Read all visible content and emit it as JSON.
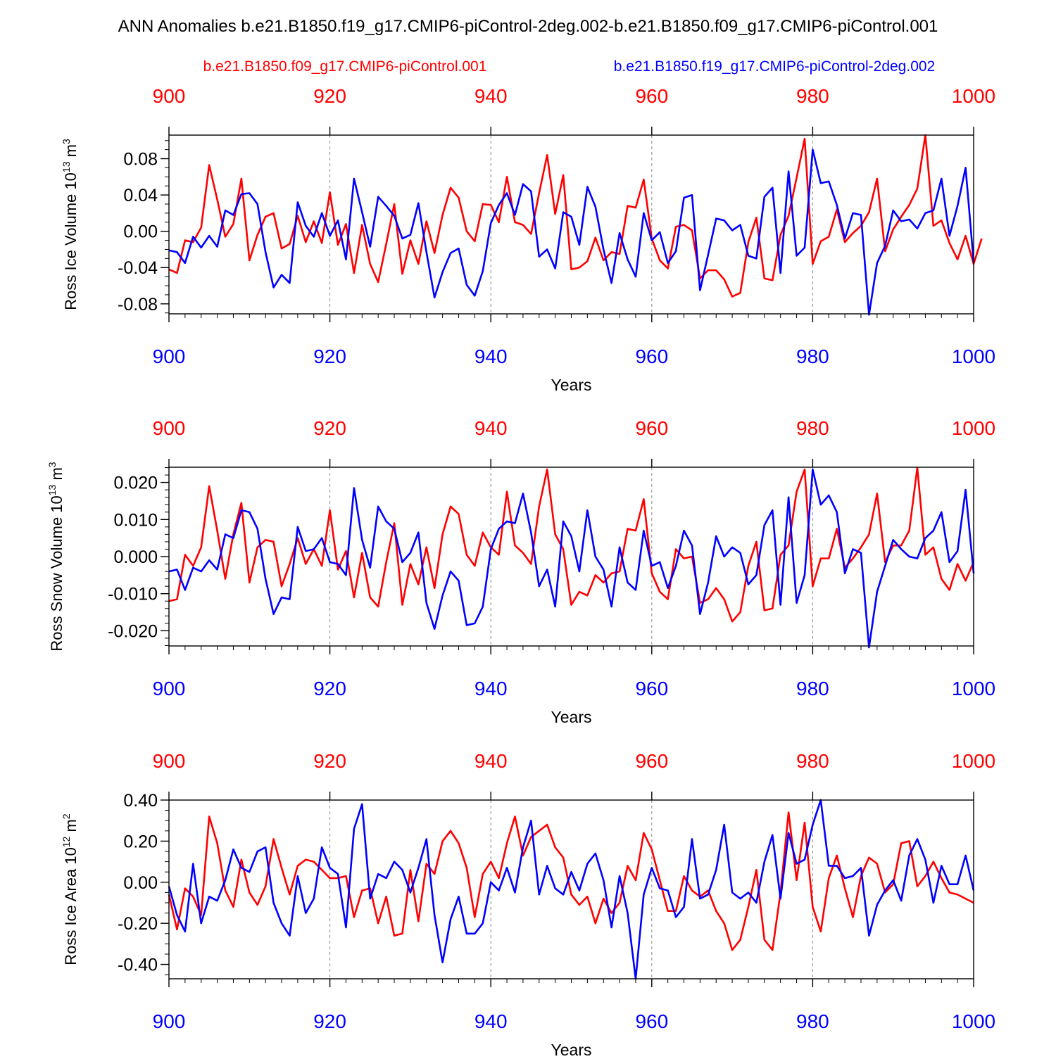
{
  "title": "ANN Anomalies b.e21.B1850.f19_g17.CMIP6-piControl-2deg.002-b.e21.B1850.f09_g17.CMIP6-piControl.001",
  "legend": {
    "red": "b.e21.B1850.f09_g17.CMIP6-piControl.001",
    "blue": "b.e21.B1850.f19_g17.CMIP6-piControl-2deg.002"
  },
  "colors": {
    "red": "#ff0000",
    "blue": "#0000ff",
    "axis": "#000000",
    "grid": "#888888"
  },
  "chart_data": [
    {
      "type": "line",
      "title": "",
      "xlabel": "Years",
      "ylabel_text": "Ross Ice Volume 10",
      "ylabel_sup": "13",
      "ylabel_unit": " m",
      "ylabel_unit_sup": "3",
      "xlim": [
        900,
        1000
      ],
      "ylim": [
        -0.091,
        0.106
      ],
      "xticks": [
        "900",
        "920",
        "940",
        "960",
        "980",
        "1000"
      ],
      "yticks": [
        {
          "v": 0.08,
          "label": "0.08"
        },
        {
          "v": 0.04,
          "label": "0.04"
        },
        {
          "v": 0.0,
          "label": "0.00"
        },
        {
          "v": -0.04,
          "label": "-0.04"
        },
        {
          "v": -0.08,
          "label": "-0.08"
        }
      ],
      "yminor": [
        0.1,
        0.09,
        0.07,
        0.06,
        0.05,
        0.03,
        0.02,
        0.01,
        -0.01,
        -0.02,
        -0.03,
        -0.05,
        -0.06,
        -0.07,
        -0.09
      ],
      "x_start": 900,
      "series": [
        {
          "name": "b.e21.B1850.f09_g17.CMIP6-piControl.001",
          "color": "red",
          "values": [
            -0.042,
            -0.046,
            -0.01,
            -0.012,
            0.004,
            0.073,
            0.035,
            -0.006,
            0.008,
            0.058,
            -0.032,
            -0.004,
            0.016,
            0.02,
            -0.019,
            -0.014,
            0.017,
            -0.012,
            0.011,
            -0.013,
            0.043,
            -0.015,
            0.008,
            -0.046,
            0.007,
            -0.036,
            -0.056,
            -0.014,
            0.03,
            -0.047,
            -0.01,
            -0.036,
            0.011,
            -0.024,
            0.018,
            0.048,
            0.037,
            0.0,
            -0.011,
            0.03,
            0.029,
            0.01,
            0.06,
            0.01,
            0.007,
            -0.003,
            0.042,
            0.084,
            0.019,
            0.062,
            -0.042,
            -0.04,
            -0.033,
            -0.007,
            -0.032,
            -0.023,
            -0.025,
            0.028,
            0.026,
            0.057,
            -0.008,
            -0.032,
            -0.041,
            0.005,
            0.007,
            0.001,
            -0.052,
            -0.043,
            -0.043,
            -0.053,
            -0.072,
            -0.068,
            -0.012,
            0.015,
            -0.052,
            -0.054,
            -0.004,
            0.017,
            0.059,
            0.102,
            -0.036,
            -0.011,
            -0.006,
            0.024,
            -0.012,
            -0.002,
            0.006,
            0.021,
            0.058,
            -0.022,
            0.002,
            0.016,
            0.029,
            0.047,
            0.106,
            0.006,
            0.012,
            -0.013,
            -0.031,
            -0.005,
            -0.036,
            -0.008
          ]
        },
        {
          "name": "b.e21.B1850.f19_g17.CMIP6-piControl-2deg.002",
          "color": "blue",
          "values": [
            -0.021,
            -0.023,
            -0.035,
            -0.006,
            -0.018,
            -0.005,
            -0.017,
            0.023,
            0.018,
            0.041,
            0.042,
            0.03,
            -0.023,
            -0.062,
            -0.048,
            -0.057,
            0.032,
            0.006,
            -0.006,
            0.02,
            -0.005,
            0.012,
            -0.031,
            0.058,
            0.021,
            -0.017,
            0.038,
            0.028,
            0.017,
            -0.008,
            -0.004,
            0.031,
            -0.023,
            -0.073,
            -0.045,
            -0.024,
            -0.019,
            -0.059,
            -0.071,
            -0.044,
            0.009,
            0.029,
            0.042,
            0.018,
            0.052,
            0.044,
            -0.028,
            -0.02,
            -0.041,
            0.021,
            0.016,
            -0.015,
            0.049,
            0.027,
            -0.02,
            -0.057,
            -0.002,
            -0.031,
            -0.05,
            0.02,
            -0.01,
            -0.001,
            -0.035,
            -0.022,
            0.037,
            0.04,
            -0.065,
            -0.026,
            0.014,
            0.012,
            0.001,
            0.007,
            -0.027,
            -0.03,
            0.038,
            0.048,
            -0.046,
            0.066,
            -0.027,
            -0.018,
            0.09,
            0.053,
            0.055,
            0.029,
            -0.008,
            0.02,
            0.018,
            -0.092,
            -0.035,
            -0.016,
            0.023,
            0.011,
            0.013,
            0.003,
            0.02,
            0.023,
            0.058,
            -0.005,
            0.028,
            0.07,
            -0.034
          ]
        }
      ]
    },
    {
      "type": "line",
      "title": "",
      "xlabel": "Years",
      "ylabel_text": "Ross Snow Volume 10",
      "ylabel_sup": "13",
      "ylabel_unit": " m",
      "ylabel_unit_sup": "3",
      "xlim": [
        900,
        1000
      ],
      "ylim": [
        -0.0241,
        0.0241
      ],
      "xticks": [
        "900",
        "920",
        "940",
        "960",
        "980",
        "1000"
      ],
      "yticks": [
        {
          "v": 0.02,
          "label": "0.020"
        },
        {
          "v": 0.01,
          "label": "0.010"
        },
        {
          "v": 0.0,
          "label": "0.000"
        },
        {
          "v": -0.01,
          "label": "-0.010"
        },
        {
          "v": -0.02,
          "label": "-0.020"
        }
      ],
      "yminor": [
        0.024,
        0.022,
        0.018,
        0.016,
        0.014,
        0.012,
        0.008,
        0.006,
        0.004,
        0.002,
        -0.002,
        -0.004,
        -0.006,
        -0.008,
        -0.012,
        -0.014,
        -0.016,
        -0.018,
        -0.022,
        -0.024
      ],
      "x_start": 900,
      "series": [
        {
          "name": "b.e21.B1850.f09_g17.CMIP6-piControl.001",
          "color": "red",
          "values": [
            -0.012,
            -0.0115,
            0.0005,
            -0.0025,
            0.0025,
            0.019,
            0.007,
            -0.006,
            0.006,
            0.0145,
            -0.007,
            0.0025,
            0.0045,
            0.004,
            -0.008,
            -0.002,
            0.005,
            -0.002,
            0.002,
            -0.0025,
            0.0125,
            -0.0035,
            0.0015,
            -0.011,
            0.001,
            -0.011,
            -0.0135,
            -0.0015,
            0.009,
            -0.013,
            -0.002,
            -0.0075,
            0.0025,
            -0.0085,
            0.006,
            0.0135,
            0.0115,
            0.0005,
            -0.0025,
            0.0065,
            0.0025,
            0.0005,
            0.0175,
            0.003,
            0.001,
            -0.002,
            0.0135,
            0.0235,
            0.006,
            0.002,
            -0.013,
            -0.0095,
            -0.0105,
            -0.005,
            -0.007,
            -0.0045,
            -0.004,
            0.0075,
            0.007,
            0.0155,
            -0.0045,
            -0.0095,
            -0.0115,
            0.002,
            -0.0005,
            0.0,
            -0.0125,
            -0.0115,
            -0.0085,
            -0.0115,
            -0.0175,
            -0.015,
            -0.0025,
            0.004,
            -0.0145,
            -0.014,
            0.0005,
            0.003,
            0.0175,
            0.0235,
            -0.008,
            -0.0005,
            -0.0005,
            0.0075,
            -0.003,
            -0.0005,
            0.0025,
            0.006,
            0.017,
            -0.0015,
            0.003,
            0.003,
            0.007,
            0.024,
            0.0005,
            0.0025,
            -0.006,
            -0.009,
            -0.002,
            -0.0065,
            -0.0015
          ]
        },
        {
          "name": "b.e21.B1850.f19_g17.CMIP6-piControl-2deg.002",
          "color": "blue",
          "values": [
            -0.004,
            -0.0035,
            -0.009,
            -0.003,
            -0.004,
            -0.001,
            -0.0035,
            0.006,
            0.005,
            0.0125,
            0.012,
            0.0075,
            -0.006,
            -0.0155,
            -0.011,
            -0.0115,
            0.008,
            0.0015,
            0.002,
            0.005,
            -0.0015,
            -0.002,
            -0.005,
            0.0185,
            0.0045,
            -0.003,
            0.0135,
            0.0095,
            0.0075,
            -0.0015,
            0.001,
            0.0065,
            -0.0125,
            -0.0195,
            -0.0105,
            -0.004,
            -0.0065,
            -0.0185,
            -0.018,
            -0.0135,
            0.002,
            0.0075,
            0.0095,
            0.009,
            0.017,
            0.0065,
            -0.008,
            -0.0035,
            -0.0135,
            0.0095,
            0.0055,
            -0.004,
            0.0125,
            0.0,
            -0.0035,
            -0.0135,
            0.0025,
            -0.007,
            -0.009,
            0.007,
            -0.0025,
            -0.0015,
            -0.0085,
            -0.0025,
            0.007,
            0.003,
            -0.0155,
            -0.007,
            0.0055,
            0.0,
            0.0025,
            0.001,
            -0.0075,
            -0.005,
            0.0085,
            0.0125,
            -0.013,
            0.016,
            -0.0125,
            -0.005,
            0.0235,
            0.014,
            0.0165,
            0.012,
            -0.0045,
            0.002,
            0.001,
            -0.0245,
            -0.0095,
            -0.0025,
            0.0045,
            0.002,
            0.0,
            -0.0005,
            0.005,
            0.007,
            0.012,
            -0.0015,
            0.0015,
            0.018,
            -0.0045
          ]
        }
      ]
    },
    {
      "type": "line",
      "title": "",
      "xlabel": "Years",
      "ylabel_text": "Ross Ice Area 10",
      "ylabel_sup": "12",
      "ylabel_unit": " m",
      "ylabel_unit_sup": "2",
      "xlim": [
        900,
        1000
      ],
      "ylim": [
        -0.47,
        0.4
      ],
      "xticks": [
        "900",
        "920",
        "940",
        "960",
        "980",
        "1000"
      ],
      "yticks": [
        {
          "v": 0.4,
          "label": "0.40"
        },
        {
          "v": 0.2,
          "label": "0.20"
        },
        {
          "v": 0.0,
          "label": "0.00"
        },
        {
          "v": -0.2,
          "label": "-0.20"
        },
        {
          "v": -0.4,
          "label": "-0.40"
        }
      ],
      "yminor": [
        0.35,
        0.3,
        0.25,
        0.15,
        0.1,
        0.05,
        -0.05,
        -0.1,
        -0.15,
        -0.25,
        -0.3,
        -0.35,
        -0.45
      ],
      "x_start": 900,
      "series": [
        {
          "name": "b.e21.B1850.f09_g17.CMIP6-piControl.001",
          "color": "red",
          "values": [
            -0.06,
            -0.23,
            -0.03,
            -0.07,
            -0.16,
            0.32,
            0.19,
            -0.04,
            -0.12,
            0.11,
            -0.05,
            -0.11,
            -0.02,
            0.21,
            0.07,
            -0.06,
            0.08,
            0.11,
            0.1,
            0.06,
            0.02,
            0.02,
            0.03,
            -0.17,
            -0.04,
            -0.03,
            -0.2,
            -0.07,
            -0.26,
            -0.25,
            0.06,
            -0.19,
            0.09,
            0.04,
            0.2,
            0.25,
            0.19,
            0.07,
            -0.17,
            0.04,
            0.1,
            0.02,
            0.19,
            0.32,
            0.13,
            0.22,
            0.25,
            0.28,
            0.17,
            0.12,
            -0.06,
            -0.11,
            -0.07,
            -0.2,
            -0.08,
            -0.15,
            -0.1,
            0.08,
            0.01,
            0.24,
            0.16,
            0.01,
            -0.14,
            -0.14,
            0.03,
            -0.04,
            -0.07,
            -0.04,
            -0.14,
            -0.2,
            -0.33,
            -0.28,
            -0.12,
            0.06,
            -0.28,
            -0.33,
            -0.05,
            0.34,
            0.01,
            0.29,
            -0.12,
            -0.24,
            0.02,
            0.13,
            -0.03,
            -0.17,
            0.03,
            0.12,
            0.09,
            -0.05,
            -0.01,
            0.19,
            0.2,
            -0.02,
            0.03,
            0.1,
            0.02,
            -0.05,
            -0.06,
            -0.08,
            -0.1
          ]
        },
        {
          "name": "b.e21.B1850.f19_g17.CMIP6-piControl-2deg.002",
          "color": "blue",
          "values": [
            -0.02,
            -0.16,
            -0.24,
            0.09,
            -0.2,
            -0.07,
            -0.09,
            0.01,
            0.16,
            0.07,
            0.05,
            0.15,
            0.17,
            -0.1,
            -0.2,
            -0.26,
            0.03,
            -0.15,
            -0.08,
            0.17,
            0.07,
            0.04,
            -0.22,
            0.26,
            0.38,
            -0.08,
            0.04,
            0.02,
            0.1,
            0.06,
            -0.05,
            0.07,
            0.21,
            -0.16,
            -0.39,
            -0.18,
            -0.07,
            -0.25,
            -0.25,
            -0.2,
            0.0,
            -0.04,
            0.07,
            -0.05,
            0.17,
            0.3,
            -0.06,
            0.08,
            -0.03,
            -0.06,
            0.05,
            -0.04,
            0.09,
            0.14,
            0.01,
            -0.22,
            0.03,
            -0.15,
            -0.47,
            -0.06,
            0.07,
            -0.03,
            -0.04,
            -0.17,
            -0.12,
            0.21,
            -0.08,
            -0.06,
            0.06,
            0.28,
            -0.05,
            -0.08,
            -0.05,
            -0.1,
            0.1,
            0.23,
            -0.08,
            0.24,
            0.09,
            0.11,
            0.28,
            0.4,
            0.08,
            0.08,
            0.02,
            0.03,
            0.07,
            -0.26,
            -0.11,
            -0.04,
            0.01,
            -0.09,
            0.13,
            0.21,
            0.11,
            -0.1,
            0.08,
            -0.01,
            -0.01,
            0.13,
            -0.04
          ]
        }
      ]
    }
  ]
}
